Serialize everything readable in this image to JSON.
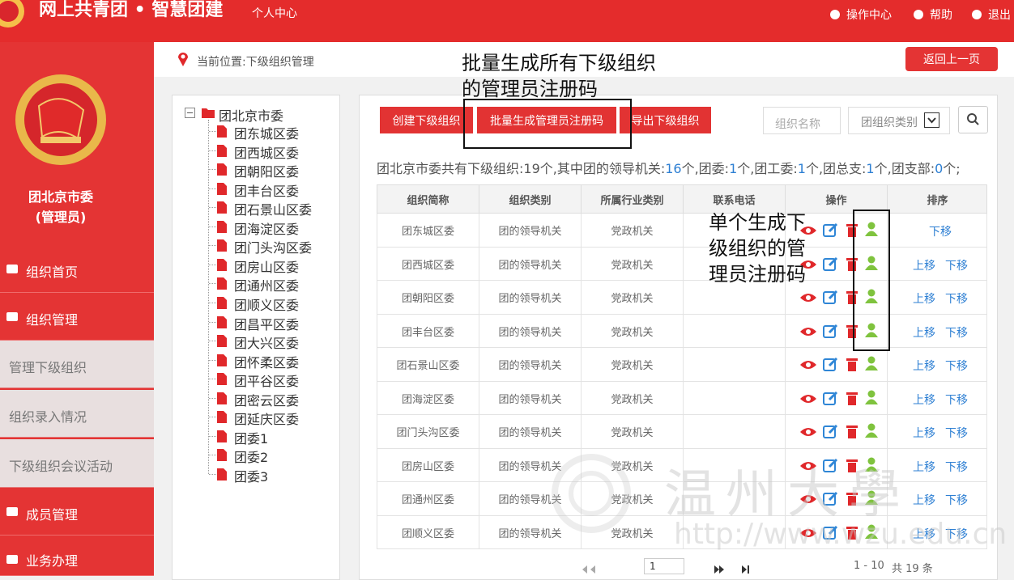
{
  "header": {
    "title": "网上共青团 • 智慧团建",
    "subtitle": "个人中心",
    "links": [
      "操作中心",
      "帮助",
      "退出"
    ]
  },
  "sidebar": {
    "org_name": "团北京市委",
    "role": "(管理员)",
    "menu": [
      {
        "label": "组织首页",
        "kind": "main"
      },
      {
        "label": "组织管理",
        "kind": "main"
      },
      {
        "label": "管理下级组织",
        "kind": "sub"
      },
      {
        "label": "组织录入情况",
        "kind": "sub"
      },
      {
        "label": "下级组织会议活动",
        "kind": "sub"
      },
      {
        "label": "成员管理",
        "kind": "main"
      },
      {
        "label": "业务办理",
        "kind": "main"
      }
    ]
  },
  "breadcrumb": "当前位置:下级组织管理",
  "back_button": "返回上一页",
  "tree": {
    "root": "团北京市委",
    "children": [
      "团东城区委",
      "团西城区委",
      "团朝阳区委",
      "团丰台区委",
      "团石景山区委",
      "团海淀区委",
      "团门头沟区委",
      "团房山区委",
      "团通州区委",
      "团顺义区委",
      "团昌平区委",
      "团大兴区委",
      "团怀柔区委",
      "团平谷区委",
      "团密云区委",
      "团延庆区委",
      "团委1",
      "团委2",
      "团委3"
    ]
  },
  "toolbar": {
    "buttons": [
      "创建下级组织",
      "批量生成管理员注册码",
      "导出下级组织"
    ],
    "search_placeholder": "组织名称",
    "select": "团组织类别"
  },
  "summary": [
    "团北京市委共有下级组织:19个,其中团的领导机关:",
    "16",
    "个,团委:",
    "1",
    "个,团工委:",
    "1",
    "个,团总支:",
    "1",
    "个,团支部:",
    "0",
    "个;"
  ],
  "table": {
    "headers": [
      "组织简称",
      "组织类别",
      "所属行业类别",
      "联系电话",
      "操作",
      "排序"
    ],
    "rows": [
      {
        "name": "团东城区委",
        "category": "团的领导机关",
        "industry": "党政机关",
        "sort": [
          "下移"
        ]
      },
      {
        "name": "团西城区委",
        "category": "团的领导机关",
        "industry": "党政机关",
        "sort": [
          "上移",
          "下移"
        ]
      },
      {
        "name": "团朝阳区委",
        "category": "团的领导机关",
        "industry": "党政机关",
        "sort": [
          "上移",
          "下移"
        ]
      },
      {
        "name": "团丰台区委",
        "category": "团的领导机关",
        "industry": "党政机关",
        "sort": [
          "上移",
          "下移"
        ]
      },
      {
        "name": "团石景山区委",
        "category": "团的领导机关",
        "industry": "党政机关",
        "sort": [
          "上移",
          "下移"
        ]
      },
      {
        "name": "团海淀区委",
        "category": "团的领导机关",
        "industry": "党政机关",
        "sort": [
          "上移",
          "下移"
        ]
      },
      {
        "name": "团门头沟区委",
        "category": "团的领导机关",
        "industry": "党政机关",
        "sort": [
          "上移",
          "下移"
        ]
      },
      {
        "name": "团房山区委",
        "category": "团的领导机关",
        "industry": "党政机关",
        "sort": [
          "上移",
          "下移"
        ]
      },
      {
        "name": "团通州区委",
        "category": "团的领导机关",
        "industry": "党政机关",
        "sort": [
          "上移",
          "下移"
        ]
      },
      {
        "name": "团顺义区委",
        "category": "团的领导机关",
        "industry": "党政机关",
        "sort": [
          "上移",
          "下移"
        ]
      }
    ]
  },
  "pagination": {
    "page": "1",
    "range": "1 - 10",
    "total": "共 19 条"
  },
  "annotations": [
    "批量生成所有下级组织的管理员注册码",
    "单个生成下级组织的管理员注册码"
  ],
  "watermark": {
    "name": "温州大學",
    "url": "http://www.wzu.edu.cn"
  }
}
